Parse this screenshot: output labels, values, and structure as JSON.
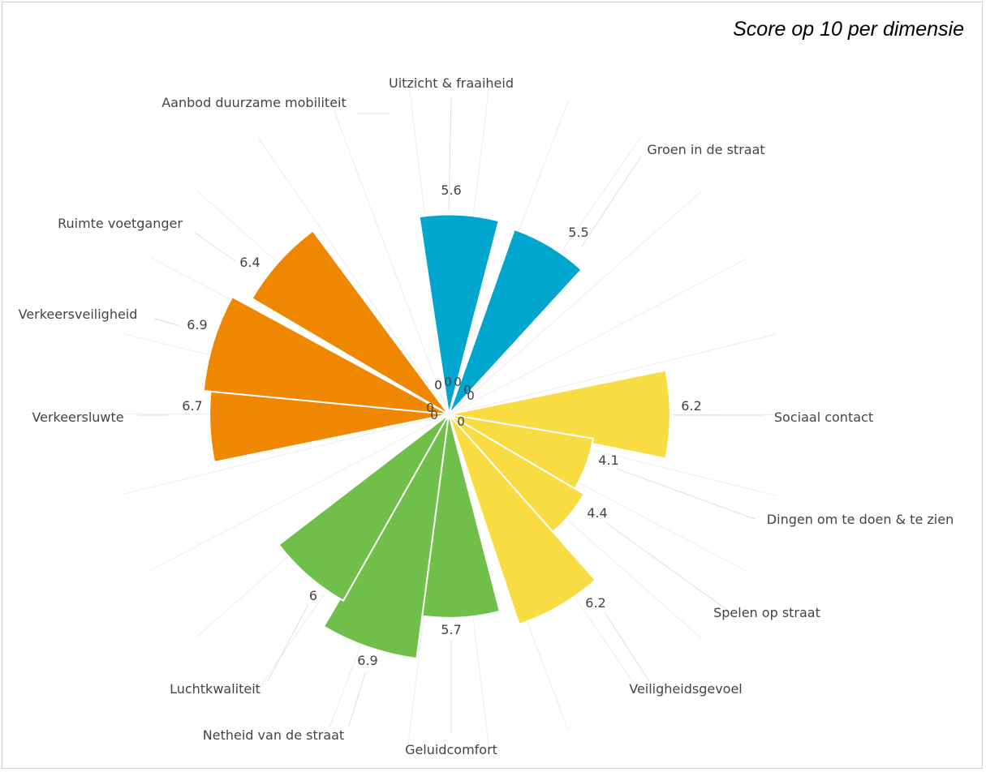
{
  "subtitle": "Score op 10 per dimensie",
  "chart_data": {
    "type": "polar-bar",
    "subtitle": "Score op 10 per dimensie",
    "radial_range": [
      0,
      10
    ],
    "grid": true,
    "legend": "none",
    "categories": [
      "Uitzicht & fraaiheid",
      "Groen in de straat",
      "Sociaal contact",
      "Dingen om te doen & te zien",
      "Spelen op straat",
      "Veiligheidsgevoel",
      "Geluidcomfort",
      "Netheid van de straat",
      "Luchtkwaliteit",
      "Verkeersluwte",
      "Verkeersveiligheid",
      "Ruimte voetganger",
      "Aanbod duurzame mobiliteit"
    ],
    "values": [
      5.6,
      5.5,
      6.2,
      4.1,
      4.4,
      6.2,
      5.7,
      6.9,
      6,
      6.7,
      6.9,
      6.4,
      0
    ],
    "value_labels": [
      "5.6",
      "5.5",
      "6.2",
      "4.1",
      "4.4",
      "6.2",
      "5.7",
      "6.9",
      "6",
      "6.7",
      "6.9",
      "6.4",
      "0"
    ],
    "bar_colors": [
      "#00a6cd",
      "#00a6cd",
      "#f9db42",
      "#f9db42",
      "#f9db42",
      "#f9db42",
      "#70bf4a",
      "#70bf4a",
      "#70bf4a",
      "#ef8700",
      "#ef8700",
      "#ef8700",
      "#ef8700"
    ],
    "zero_labels": [
      "0",
      "0",
      "0",
      "0",
      "0",
      "0",
      "0",
      "0",
      "0"
    ],
    "colors": {
      "blue": "#00a6cd",
      "yellow": "#f9db42",
      "green": "#70bf4a",
      "orange": "#ef8700",
      "grid": "#efefef",
      "leader": "#dedede",
      "text": "#444444"
    }
  }
}
